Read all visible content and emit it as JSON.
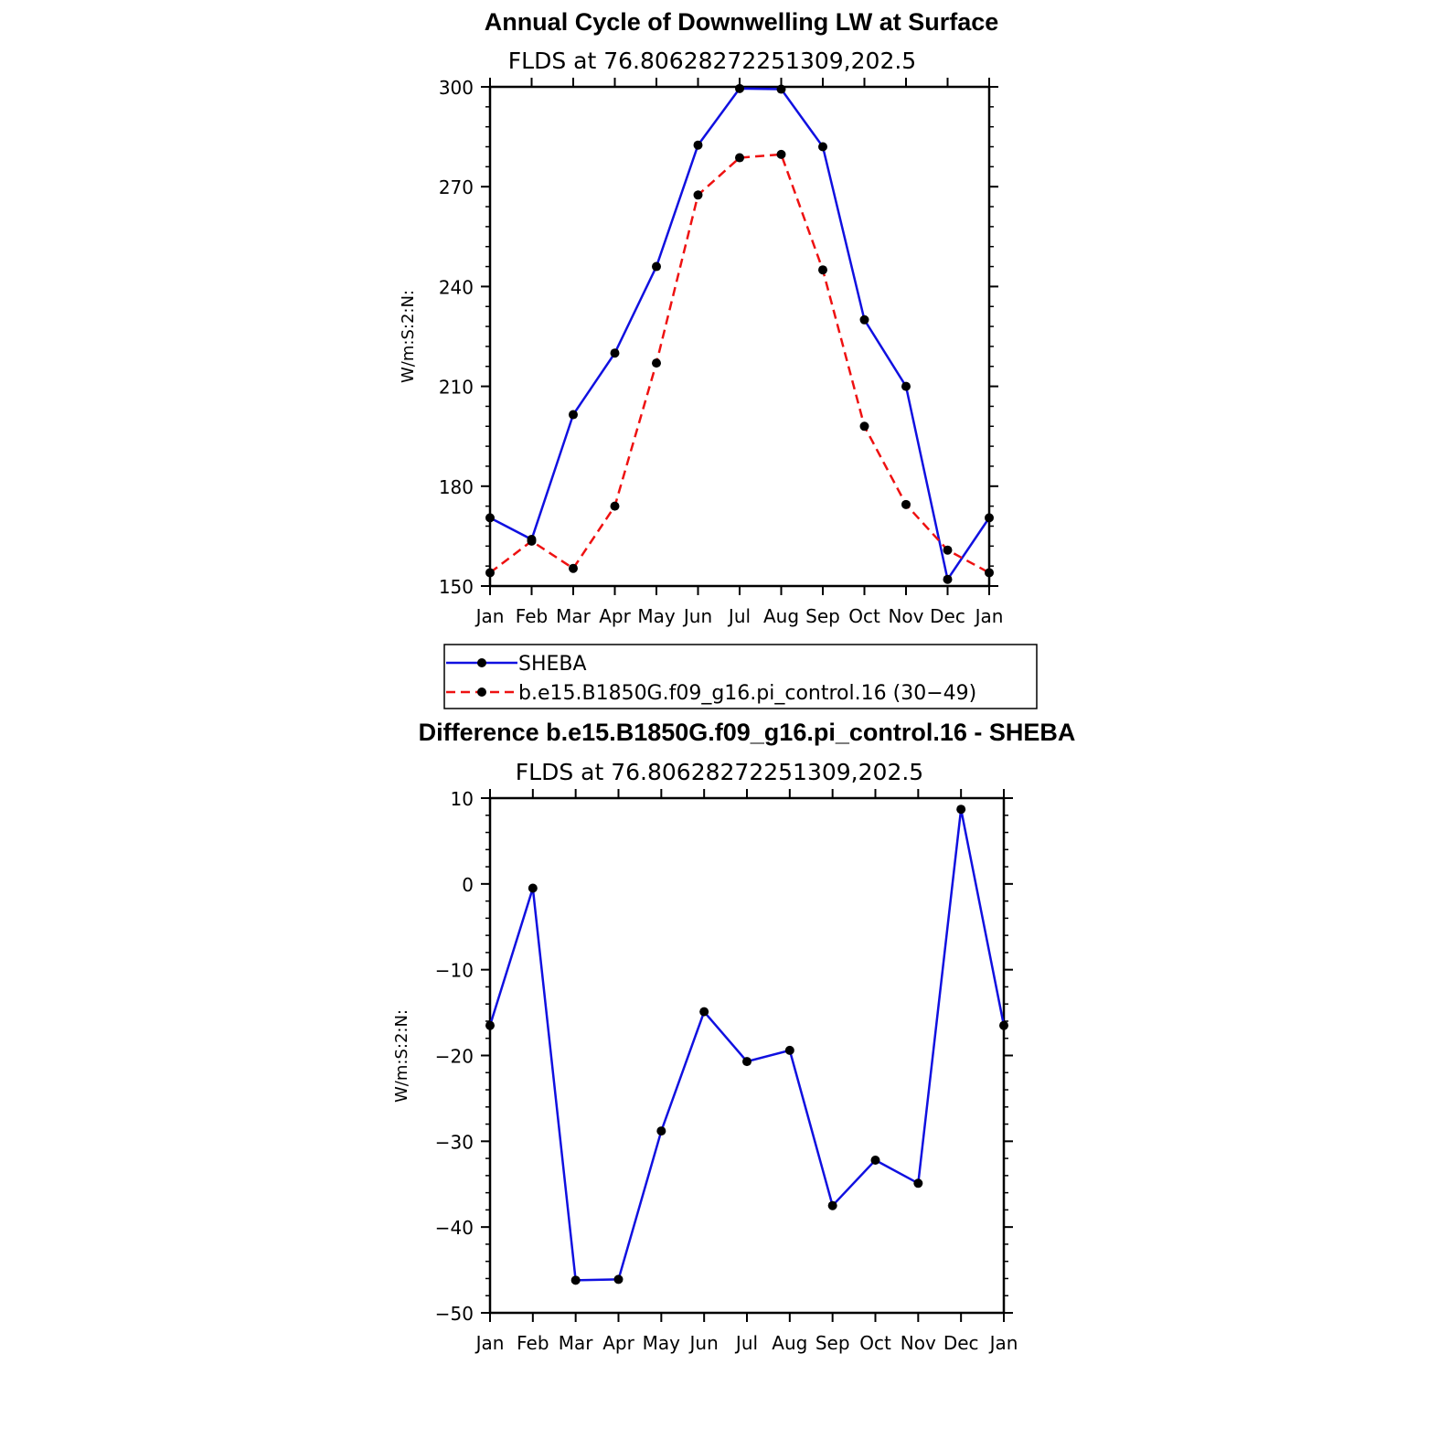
{
  "chart_data": [
    {
      "type": "line",
      "title": "Annual Cycle of Downwelling LW at Surface",
      "subtitle": "FLDS at 76.80628272251309,202.5",
      "xlabel": "",
      "ylabel": "W/m:S:2:N:",
      "categories": [
        "Jan",
        "Feb",
        "Mar",
        "Apr",
        "May",
        "Jun",
        "Jul",
        "Aug",
        "Sep",
        "Oct",
        "Nov",
        "Dec",
        "Jan"
      ],
      "ylim": [
        150,
        300
      ],
      "yticks": [
        150,
        180,
        210,
        240,
        270,
        300
      ],
      "grid": false,
      "legend_position": "bottom",
      "series": [
        {
          "name": "SHEBA",
          "color": "#1010e0",
          "dash": "solid",
          "values": [
            170.5,
            164,
            201.5,
            220,
            246,
            282.5,
            299.5,
            299.3,
            282,
            230,
            210,
            152,
            170.5
          ]
        },
        {
          "name": "b.e15.B1850G.f09_g16.pi_control.16 (30−49)",
          "color": "#ee1111",
          "dash": "dashed",
          "values": [
            154,
            163.5,
            155.3,
            174,
            217,
            267.5,
            278.7,
            279.7,
            245,
            198,
            174.5,
            160.8,
            154
          ]
        }
      ]
    },
    {
      "type": "line",
      "title": "Difference b.e15.B1850G.f09_g16.pi_control.16 - SHEBA",
      "subtitle": "FLDS at 76.80628272251309,202.5",
      "xlabel": "",
      "ylabel": "W/m:S:2:N:",
      "categories": [
        "Jan",
        "Feb",
        "Mar",
        "Apr",
        "May",
        "Jun",
        "Jul",
        "Aug",
        "Sep",
        "Oct",
        "Nov",
        "Dec",
        "Jan"
      ],
      "ylim": [
        -50,
        10
      ],
      "yticks": [
        -50,
        -40,
        -30,
        -20,
        -10,
        0,
        10
      ],
      "ytick_labels": [
        "−50",
        "−40",
        "−30",
        "−20",
        "−10",
        "0",
        "10"
      ],
      "grid": false,
      "series": [
        {
          "color": "#1010e0",
          "dash": "solid",
          "values": [
            -16.5,
            -0.5,
            -46.2,
            -46.1,
            -28.8,
            -14.9,
            -20.7,
            -19.4,
            -37.5,
            -32.2,
            -34.9,
            8.7,
            -16.5
          ]
        }
      ]
    }
  ]
}
